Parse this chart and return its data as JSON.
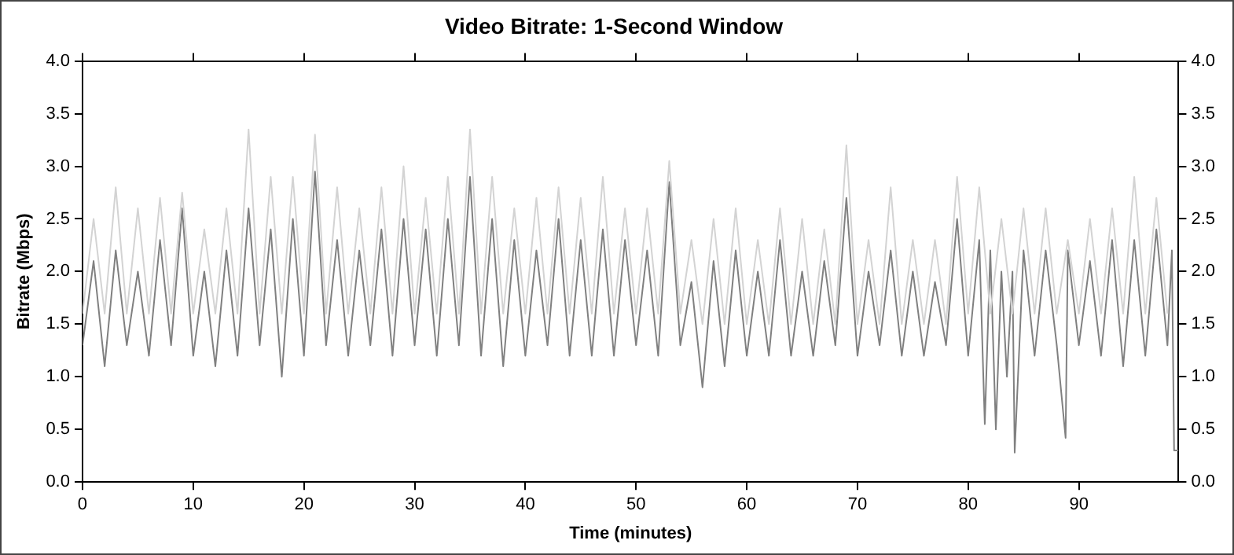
{
  "chart_data": {
    "type": "line",
    "title": "Video Bitrate: 1-Second Window",
    "xlabel": "Time (minutes)",
    "ylabel": "Bitrate (Mbps)",
    "xlim": [
      0,
      99
    ],
    "xticks": [
      0,
      10,
      20,
      30,
      40,
      50,
      60,
      70,
      80,
      90
    ],
    "ylim": [
      0,
      4
    ],
    "yticks": [
      {
        "value": 0,
        "label": "0.0"
      },
      0.5,
      {
        "value": 1,
        "label": "1.0"
      },
      1.5,
      {
        "value": 2,
        "label": "2.0"
      },
      2.5,
      {
        "value": 3,
        "label": "3.0"
      },
      3.5,
      {
        "value": 4,
        "label": "4.0"
      }
    ],
    "y2lim": [
      0,
      4
    ],
    "y2ticks": [
      {
        "value": 0,
        "label": "0.0"
      },
      0.5,
      {
        "value": 1,
        "label": "1.0"
      },
      1.5,
      {
        "value": 2,
        "label": "2.0"
      },
      2.5,
      {
        "value": 3,
        "label": "3.0"
      },
      3.5,
      {
        "value": 4,
        "label": "4.0"
      }
    ],
    "grid": false,
    "legend": false,
    "marker": "none",
    "line_style": "solid",
    "series": [
      {
        "color": "#d3d3d3",
        "x": [
          0,
          1,
          2,
          3,
          4,
          5,
          6,
          7,
          8,
          9,
          10,
          11,
          12,
          13,
          14,
          15,
          16,
          17,
          18,
          19,
          20,
          21,
          22,
          23,
          24,
          25,
          26,
          27,
          28,
          29,
          30,
          31,
          32,
          33,
          34,
          35,
          36,
          37,
          38,
          39,
          40,
          41,
          42,
          43,
          44,
          45,
          46,
          47,
          48,
          49,
          50,
          51,
          52,
          53,
          54,
          55,
          56,
          57,
          58,
          59,
          60,
          61,
          62,
          63,
          64,
          65,
          66,
          67,
          68,
          69,
          70,
          71,
          72,
          73,
          74,
          75,
          76,
          77,
          78,
          79,
          80,
          81,
          82,
          83,
          84,
          85,
          86,
          87,
          88,
          89,
          90,
          91,
          92,
          93,
          94,
          95,
          96,
          97,
          98
        ],
        "values": [
          1.6,
          2.5,
          1.6,
          2.8,
          1.6,
          2.6,
          1.6,
          2.7,
          1.6,
          2.75,
          1.6,
          2.4,
          1.6,
          2.6,
          1.6,
          3.35,
          1.6,
          2.9,
          1.6,
          2.9,
          1.6,
          3.3,
          1.6,
          2.8,
          1.6,
          2.6,
          1.6,
          2.8,
          1.6,
          3.0,
          1.6,
          2.7,
          1.6,
          2.9,
          1.6,
          3.35,
          1.6,
          2.9,
          1.6,
          2.6,
          1.6,
          2.7,
          1.6,
          2.8,
          1.6,
          2.7,
          1.6,
          2.9,
          1.6,
          2.6,
          1.6,
          2.6,
          1.6,
          3.05,
          1.6,
          2.3,
          1.5,
          2.5,
          1.5,
          2.6,
          1.5,
          2.3,
          1.5,
          2.6,
          1.5,
          2.5,
          1.5,
          2.4,
          1.5,
          3.2,
          1.5,
          2.3,
          1.5,
          2.8,
          1.5,
          2.3,
          1.5,
          2.3,
          1.5,
          2.9,
          1.6,
          2.8,
          1.6,
          2.5,
          1.6,
          2.6,
          1.6,
          2.6,
          1.6,
          2.3,
          1.6,
          2.5,
          1.6,
          2.6,
          1.6,
          2.9,
          1.6,
          2.7,
          1.6
        ]
      },
      {
        "color": "#808080",
        "x": [
          0,
          1,
          2,
          3,
          4,
          5,
          6,
          7,
          8,
          9,
          10,
          11,
          12,
          13,
          14,
          15,
          16,
          17,
          18,
          19,
          20,
          21,
          22,
          23,
          24,
          25,
          26,
          27,
          28,
          29,
          30,
          31,
          32,
          33,
          34,
          35,
          36,
          37,
          38,
          39,
          40,
          41,
          42,
          43,
          44,
          45,
          46,
          47,
          48,
          49,
          50,
          51,
          52,
          53,
          54,
          55,
          56,
          57,
          58,
          59,
          60,
          61,
          62,
          63,
          64,
          65,
          66,
          67,
          68,
          69,
          70,
          71,
          72,
          73,
          74,
          75,
          76,
          77,
          78,
          79,
          80,
          81,
          81.5,
          82,
          82.5,
          83,
          83.5,
          84,
          84.2,
          85,
          86,
          87,
          88,
          88.8,
          89,
          90,
          91,
          92,
          93,
          94,
          95,
          96,
          97,
          98,
          98.4,
          98.6,
          99
        ],
        "values": [
          1.3,
          2.1,
          1.1,
          2.2,
          1.3,
          2.0,
          1.2,
          2.3,
          1.3,
          2.6,
          1.2,
          2.0,
          1.1,
          2.2,
          1.2,
          2.6,
          1.3,
          2.4,
          1.0,
          2.5,
          1.2,
          2.95,
          1.3,
          2.3,
          1.2,
          2.2,
          1.3,
          2.4,
          1.2,
          2.5,
          1.3,
          2.4,
          1.2,
          2.5,
          1.3,
          2.9,
          1.2,
          2.5,
          1.1,
          2.3,
          1.2,
          2.2,
          1.3,
          2.5,
          1.2,
          2.3,
          1.2,
          2.4,
          1.2,
          2.3,
          1.3,
          2.2,
          1.2,
          2.85,
          1.3,
          1.9,
          0.9,
          2.1,
          1.1,
          2.2,
          1.2,
          2.0,
          1.2,
          2.3,
          1.2,
          2.0,
          1.2,
          2.1,
          1.3,
          2.7,
          1.2,
          2.0,
          1.3,
          2.2,
          1.2,
          2.0,
          1.2,
          1.9,
          1.3,
          2.5,
          1.2,
          2.3,
          0.55,
          2.2,
          0.5,
          2.0,
          1.0,
          2.0,
          0.28,
          2.2,
          1.2,
          2.2,
          1.3,
          0.42,
          2.2,
          1.3,
          2.1,
          1.2,
          2.3,
          1.1,
          2.3,
          1.2,
          2.4,
          1.3,
          2.2,
          0.3,
          0.3
        ]
      }
    ]
  }
}
